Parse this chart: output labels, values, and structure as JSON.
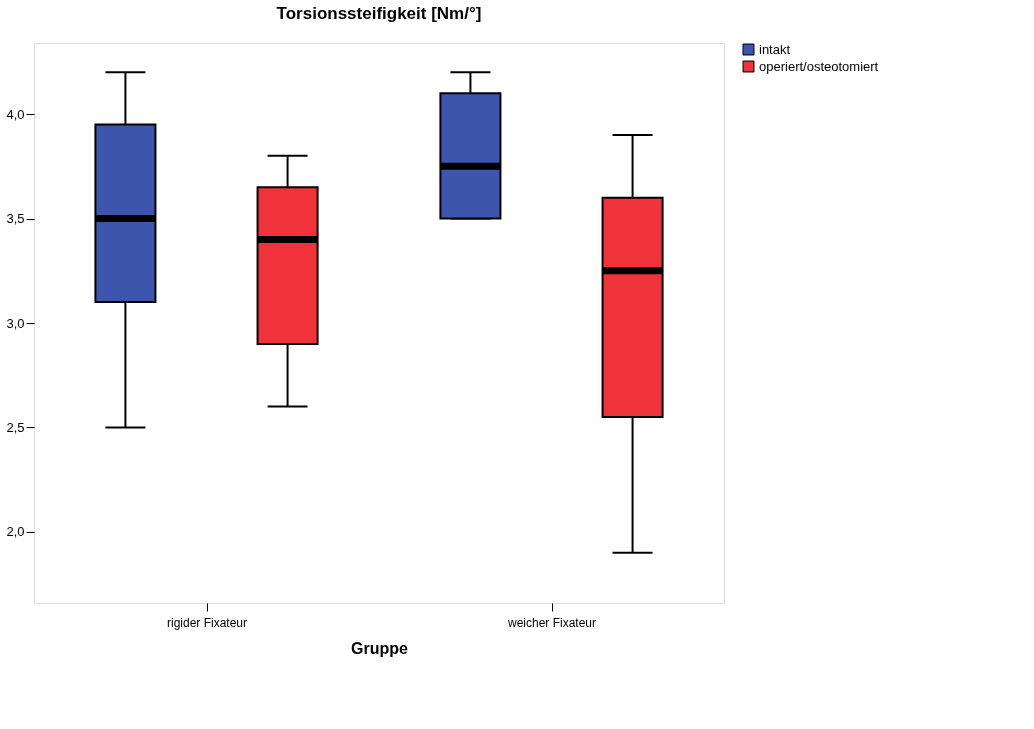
{
  "chart_data": {
    "type": "box",
    "title": "Torsionssteifigkeit [Nm/°]",
    "xlabel": "Gruppe",
    "categories": [
      "rigider Fixateur",
      "weicher Fixateur"
    ],
    "series": [
      {
        "name": "intakt",
        "color": "#3d55ad",
        "boxes": [
          {
            "low": 2.5,
            "q1": 3.1,
            "median": 3.5,
            "q3": 3.95,
            "high": 4.2
          },
          {
            "low": 3.5,
            "q1": 3.5,
            "median": 3.75,
            "q3": 4.1,
            "high": 4.2
          }
        ]
      },
      {
        "name": "operiert/osteotomiert",
        "color": "#f0333a",
        "boxes": [
          {
            "low": 2.6,
            "q1": 2.9,
            "median": 3.4,
            "q3": 3.65,
            "high": 3.8
          },
          {
            "low": 1.9,
            "q1": 2.55,
            "median": 3.25,
            "q3": 3.6,
            "high": 3.9
          }
        ]
      }
    ],
    "ylim": [
      1.66,
      4.34
    ],
    "yticks": [
      {
        "value": 2.0,
        "label": "2,0"
      },
      {
        "value": 2.5,
        "label": "2,5"
      },
      {
        "value": 3.0,
        "label": "3,0"
      },
      {
        "value": 3.5,
        "label": "3,5"
      },
      {
        "value": 4.0,
        "label": "4,0"
      }
    ],
    "legend": "top right",
    "grid": false
  }
}
